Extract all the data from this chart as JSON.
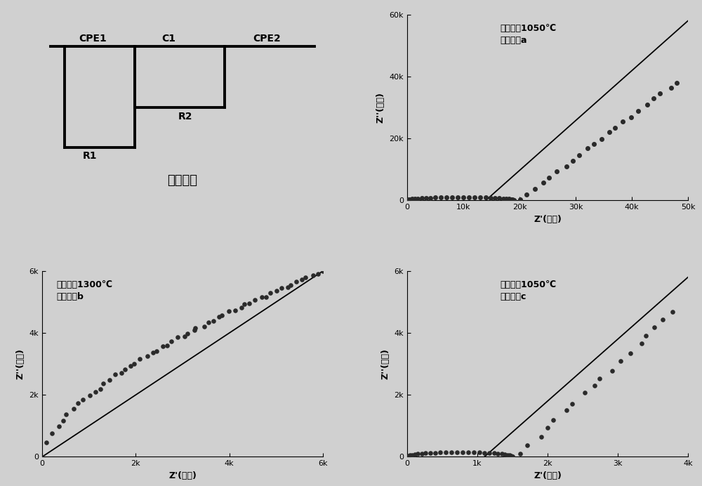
{
  "circuit_label": "拟合电路",
  "plot_a_title": "球磨混料1050℃\n合成粉体a",
  "plot_b_title": "球磨混料1300℃\n合成粉体b",
  "plot_c_title": "砂磨混料1050℃\n合成粉体c",
  "xlabel": "Z'(欧姆)",
  "ylabel": "Z''(欧姆)",
  "bg_color": "#d0d0d0",
  "plot_a": {
    "xlim": [
      0,
      50000
    ],
    "ylim": [
      0,
      60000
    ],
    "xticks": [
      0,
      10000,
      20000,
      30000,
      40000,
      50000
    ],
    "yticks": [
      0,
      20000,
      40000,
      60000
    ],
    "xtick_labels": [
      "0",
      "10k",
      "20k",
      "30k",
      "40k",
      "50k"
    ],
    "ytick_labels": [
      "0",
      "20k",
      "40k",
      "60k"
    ]
  },
  "plot_b": {
    "xlim": [
      0,
      6000
    ],
    "ylim": [
      0,
      6000
    ],
    "xticks": [
      0,
      2000,
      4000,
      6000
    ],
    "yticks": [
      0,
      2000,
      4000,
      6000
    ],
    "xtick_labels": [
      "0",
      "2k",
      "4k",
      "6k"
    ],
    "ytick_labels": [
      "0",
      "2k",
      "4k",
      "6k"
    ]
  },
  "plot_c": {
    "xlim": [
      0,
      4000
    ],
    "ylim": [
      0,
      6000
    ],
    "xticks": [
      0,
      1000,
      2000,
      3000,
      4000
    ],
    "yticks": [
      0,
      2000,
      4000,
      6000
    ],
    "xtick_labels": [
      "0",
      "1k",
      "2k",
      "3k",
      "4k"
    ],
    "ytick_labels": [
      "0",
      "2k",
      "4k",
      "6k"
    ]
  }
}
